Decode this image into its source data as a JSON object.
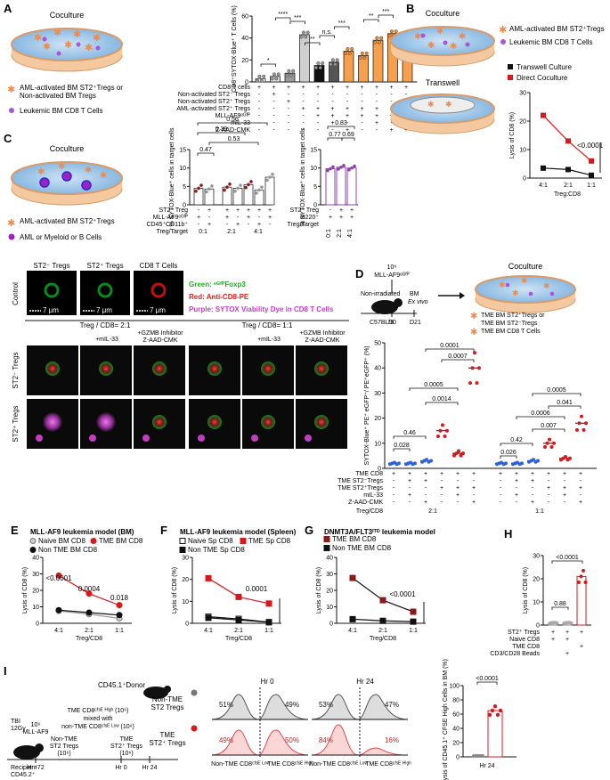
{
  "panels": {
    "A": {
      "letter": "A",
      "dish_title": "Coculture",
      "legend": [
        "AML-activated BM ST2⁺Tregs or",
        "Non-activated BM Tregs",
        "Leukemic BM CD8 T Cells"
      ],
      "ylabel": "CD8⁺SYTOX-Blue⁺ T Cells (%)",
      "sig": [
        "*",
        "****",
        "***",
        "**",
        "n.s.",
        "***",
        "**",
        "***"
      ],
      "rows": [
        "CD8 T cells",
        "Non-activated ST2⁻ Tregs",
        "Non-activated ST2⁺ Tregs",
        "AML-activated ST2⁺ Tregs",
        "MLL-AF9ᵉᴳᶠᴾ",
        "mIL-33",
        "Z-AAD-CMK"
      ]
    },
    "B": {
      "letter": "B",
      "dish1_title": "Coculture",
      "dish2_title": "Transwell",
      "legend": [
        "AML-activated BM ST2⁺Tregs",
        "Leukemic BM CD8 T Cells"
      ],
      "series_names": [
        "Transwell Culture",
        "Direct Coculture"
      ],
      "ylabel": "Lysis of CD8 (%)",
      "xlabel": "Treg:CD8",
      "p": "<0.0001"
    },
    "C": {
      "letter": "C",
      "dish_title": "Coculture",
      "legend": [
        "AML-activated BM ST2⁺Tregs",
        "AML or Myeloid or B Cells"
      ],
      "ylabel": "% SYTOX-Blue⁺ cells in target cells",
      "pvals_left": [
        "0.56",
        "0.39",
        "0.53",
        "0.47"
      ],
      "pvals_right": [
        "0.83",
        "0.77",
        "0.69"
      ],
      "rows_left": [
        "ST2⁺ Treg",
        "MLL-AF9ᵉᴳᶠᴾ",
        "CD45⁺CD11b⁺",
        "Treg/Target"
      ],
      "rows_right": [
        "ST2⁺ Treg",
        "B220⁺",
        "Treg/Target"
      ],
      "ratios": [
        "0:1",
        "2:1",
        "4:1"
      ]
    },
    "micro": {
      "cols_top": [
        "ST2⁻ Tregs",
        "ST2⁺ Tregs",
        "CD8 T Cells"
      ],
      "control": "Control",
      "scale": "7 μm",
      "legend_green": "Green: ᵉᴳᶠᴾFoxp3",
      "legend_red": "Red: Anti-CD8-PE",
      "legend_purple": "Purple: SYTOX Viability Dye in CD8 T Cells",
      "ratio_left": "Treg / CD8= 2:1",
      "ratio_right": "Treg / CD8= 1:1",
      "cond": [
        "+mIL-33",
        "+GZMB Inhibitor",
        "Z-AAD-CMK"
      ],
      "row_labels": [
        "ST2⁻ Tregs",
        "ST2⁺ Tregs"
      ]
    },
    "D": {
      "letter": "D",
      "injection": [
        "10⁶",
        "MLL-AF9ᵉᴳᶠᴾ"
      ],
      "mouse": [
        "Non-irradiated",
        "C57BL/6"
      ],
      "timeline": [
        "D0",
        "D21"
      ],
      "bm": [
        "BM",
        "Ex vivo"
      ],
      "dish_title": "Coculture",
      "legend": [
        "TME BM ST2⁺Tregs or",
        "TME BM ST2⁻Tregs",
        "TME BM CD8 T Cells"
      ],
      "ylabel": "SYTOX-Blue⁺ PE⁺ eGFP⁺/ PE⁺eGFP⁺ (%)",
      "pvals": [
        "0.0001",
        "0.0007",
        "0.0005",
        "0.0014",
        "0.46",
        "0.028",
        "0.0005",
        "0.041",
        "0.0006",
        "0.007",
        "0.42",
        "0.026"
      ],
      "rows": [
        "TME CD8",
        "TME ST2⁻Tregs",
        "TME ST2⁺Tregs",
        "mIL-33",
        "Z-AAD-CMK",
        "Treg/CD8"
      ],
      "ratios": [
        "2:1",
        "1:1"
      ]
    },
    "E": {
      "letter": "E",
      "title": "MLL-AF9 leukemia model (BM)",
      "series_names": [
        "Naive BM CD8",
        "TME BM CD8",
        "Non TME BM CD8"
      ],
      "ylabel": "Lysis of CD8 (%)",
      "xlabel": "Treg/CD8",
      "pvals": [
        "<0.0001",
        "0.0004",
        "0.018"
      ]
    },
    "F": {
      "letter": "F",
      "title": "MLL-AF9 leukemia model (Spleen)",
      "series_names": [
        "Naive Sp CD8",
        "TME Sp CD8",
        "Non TME Sp CD8"
      ],
      "ylabel": "Lysis of CD8 (%)",
      "xlabel": "Treg/CD8",
      "pvals": [
        "0.0001"
      ]
    },
    "G": {
      "letter": "G",
      "title": "DNMT3A/FLT3ᴵᵀᴰ leukemia model",
      "series_names": [
        "TME BM CD8",
        "Non TME BM CD8"
      ],
      "ylabel": "Lysis of CD8 (%)",
      "xlabel": "Treg/CD8",
      "pvals": [
        "<0.0001"
      ]
    },
    "H": {
      "letter": "H",
      "ylabel": "Lysis of CD8 (%)",
      "pvals": [
        "<0.0001",
        "0.88"
      ],
      "rows": [
        "ST2⁺ Tregs",
        "Naive CD8",
        "TME CD8",
        "CD3/CD28 Beads"
      ]
    },
    "I": {
      "letter": "I",
      "donor": "CD45.1⁺Donor",
      "mix": [
        "TME CD8ᶜᶠˢᴱ ᴴⁱᵍʰ (10⁶)",
        "mixed with",
        "non-TME CD8ᶜᶠˢᴱ ᴸᵒʷ (10⁶)"
      ],
      "tregs_non": [
        "Non-TME",
        "ST2 Tregs",
        "(10⁶)"
      ],
      "tregs_tme": [
        "TME",
        "ST2⁺ Tregs",
        "(10⁶)"
      ],
      "tbi": [
        "TBI",
        "12Gy"
      ],
      "mllaf9": [
        "10⁶",
        "MLL-AF9"
      ],
      "recipient": [
        "Recipient",
        "CD45.2⁺"
      ],
      "times": [
        "Hr -72",
        "Hr 0",
        "Hr 24"
      ],
      "hist_headers": [
        "Hr 0",
        "Hr 24"
      ],
      "row_labels": [
        [
          "Non-TME",
          "ST2 Tregs"
        ],
        [
          "TME",
          "ST2⁺ Tregs"
        ]
      ],
      "perc_top": [
        "51%",
        "49%",
        "53%",
        "47%"
      ],
      "perc_bottom": [
        "49%",
        "50%",
        "84%",
        "16%"
      ],
      "xaxis": [
        "Non-TME CD8ᶜᶠˢᴱ ᴸᵒʷ",
        "TME CD8ᶜᶠˢᴱ ᴴⁱᵍʰ"
      ],
      "ylabel": "Lysis of CD45.1⁺ CFSE High Cells in BM (%)",
      "xlabel": "Hr 24",
      "p": "<0.0001"
    }
  },
  "colors": {
    "red": "#d7191c",
    "orange": "#f6a04d",
    "purple": "#8e44ad",
    "blue": "#2e5fd8",
    "green": "#35c24a",
    "pink": "#f5b5b5"
  },
  "chart_data": [
    {
      "type": "bar",
      "panel": "A",
      "categories": [
        "1",
        "2",
        "3",
        "4",
        "5",
        "6",
        "7",
        "8",
        "9",
        "10",
        "11"
      ],
      "values": [
        3,
        5,
        8,
        43,
        15,
        18,
        28,
        24,
        38,
        44,
        25
      ],
      "ylim": [
        0,
        60
      ]
    },
    {
      "type": "line",
      "panel": "B",
      "categories": [
        "4:1",
        "2:1",
        "1:1"
      ],
      "series": [
        {
          "name": "Transwell Culture",
          "values": [
            3.5,
            3,
            1
          ]
        },
        {
          "name": "Direct Coculture",
          "values": [
            22,
            13,
            6
          ]
        }
      ],
      "ylim": [
        0,
        30
      ]
    },
    {
      "type": "bar",
      "panel": "C-left",
      "values": [
        4.5,
        4.3,
        4.8,
        4.5,
        5.5,
        4.0,
        7.5
      ],
      "ylim": [
        0,
        15
      ]
    },
    {
      "type": "bar",
      "panel": "C-right",
      "categories": [
        "0:1",
        "2:1",
        "4:1"
      ],
      "values": [
        9.8,
        10.2,
        10.0
      ],
      "ylim": [
        0,
        15
      ]
    },
    {
      "type": "bar",
      "panel": "D",
      "values": [
        2,
        2,
        3,
        15,
        6,
        40,
        2,
        2,
        3,
        10,
        4,
        18
      ],
      "ylim": [
        0,
        50
      ]
    },
    {
      "type": "line",
      "panel": "E",
      "categories": [
        "4:1",
        "2:1",
        "1:1"
      ],
      "series": [
        {
          "name": "Naive BM CD8",
          "values": [
            7.5,
            5.5,
            3
          ]
        },
        {
          "name": "TME BM CD8",
          "values": [
            29,
            18,
            11
          ]
        },
        {
          "name": "Non TME BM CD8",
          "values": [
            8,
            6.5,
            5
          ]
        }
      ],
      "ylim": [
        0,
        40
      ]
    },
    {
      "type": "line",
      "panel": "F",
      "categories": [
        "4:1",
        "2:1",
        "1:1"
      ],
      "series": [
        {
          "name": "Naive Sp CD8",
          "values": [
            3,
            2,
            0.5
          ]
        },
        {
          "name": "TME Sp CD8",
          "values": [
            20.5,
            12,
            9
          ]
        },
        {
          "name": "Non TME Sp CD8",
          "values": [
            2.5,
            1.5,
            0.5
          ]
        }
      ],
      "ylim": [
        0,
        30
      ]
    },
    {
      "type": "line",
      "panel": "G",
      "categories": [
        "4:1",
        "2:1",
        "1:1"
      ],
      "series": [
        {
          "name": "TME BM CD8",
          "values": [
            27.5,
            14,
            7
          ]
        },
        {
          "name": "Non TME BM CD8",
          "values": [
            2.5,
            1.5,
            1
          ]
        }
      ],
      "ylim": [
        0,
        40
      ]
    },
    {
      "type": "bar",
      "panel": "H",
      "values": [
        1,
        1,
        21
      ],
      "ylim": [
        0,
        30
      ]
    },
    {
      "type": "bar",
      "panel": "I",
      "values": [
        0,
        65
      ],
      "ylim": [
        0,
        100
      ]
    }
  ]
}
